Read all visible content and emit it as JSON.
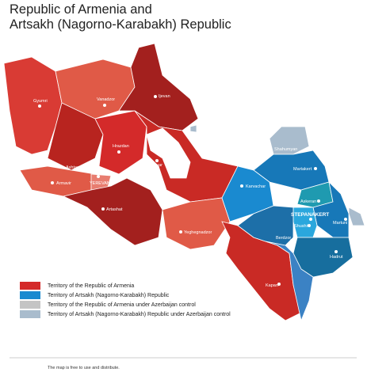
{
  "title": [
    "Republic of Armenia and",
    "Artsakh (Nagorno-Karabakh) Republic"
  ],
  "cities": [
    "Gyumri",
    "Vanadzor",
    "Ijevan",
    "Hrazdan",
    "Gavar",
    "Ashtarak",
    "Armavir",
    "YEREVAN",
    "Artashat",
    "Yeghegnadzor",
    "Kapan",
    "Shahumyan",
    "Martakert",
    "Karvachar",
    "Askeran",
    "STEPANAKERT",
    "Martuni",
    "Shushi",
    "Berdzor",
    "Hadrut"
  ],
  "legend": [
    "Territory of the Republic of Armenia",
    "Territory of Artsakh (Nagorno-Karabakh) Republic",
    "Territory of the Republic of Armenia  under Azerbaijan control",
    "Territory of Artsakh (Nagorno-Karabakh) Republic  under Azerbaijan control"
  ],
  "footer": "The map is free to use and distribute."
}
